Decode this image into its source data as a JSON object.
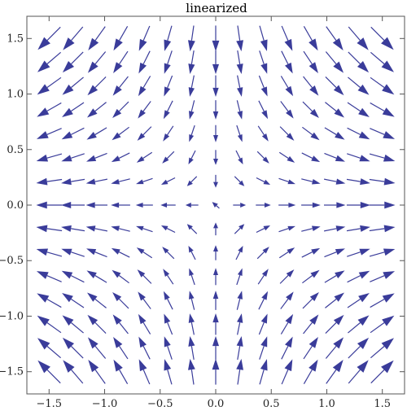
{
  "chart_data": {
    "type": "vector_field",
    "title": "linearized",
    "xlabel": "",
    "ylabel": "",
    "xlim": [
      -1.7,
      1.7
    ],
    "ylim": [
      -1.7,
      1.7
    ],
    "x_ticks": [
      -1.5,
      -1.0,
      -0.5,
      0.0,
      0.5,
      1.0,
      1.5
    ],
    "y_ticks": [
      -1.5,
      -1.0,
      -0.5,
      0.0,
      0.5,
      1.0,
      1.5
    ],
    "x_tick_labels": [
      "−1.5",
      "−1.0",
      "−0.5",
      "0.0",
      "0.5",
      "1.0",
      "1.5"
    ],
    "y_tick_labels": [
      "−1.5",
      "−1.0",
      "−0.5",
      "0.0",
      "0.5",
      "1.0",
      "1.5"
    ],
    "field": {
      "dx": "x",
      "dy": "-y"
    },
    "grid_points": 15,
    "grid_range": [
      -1.5,
      1.5
    ],
    "grid": false,
    "arrow_color": "#3a3c9a",
    "frame_color": "#555555"
  }
}
